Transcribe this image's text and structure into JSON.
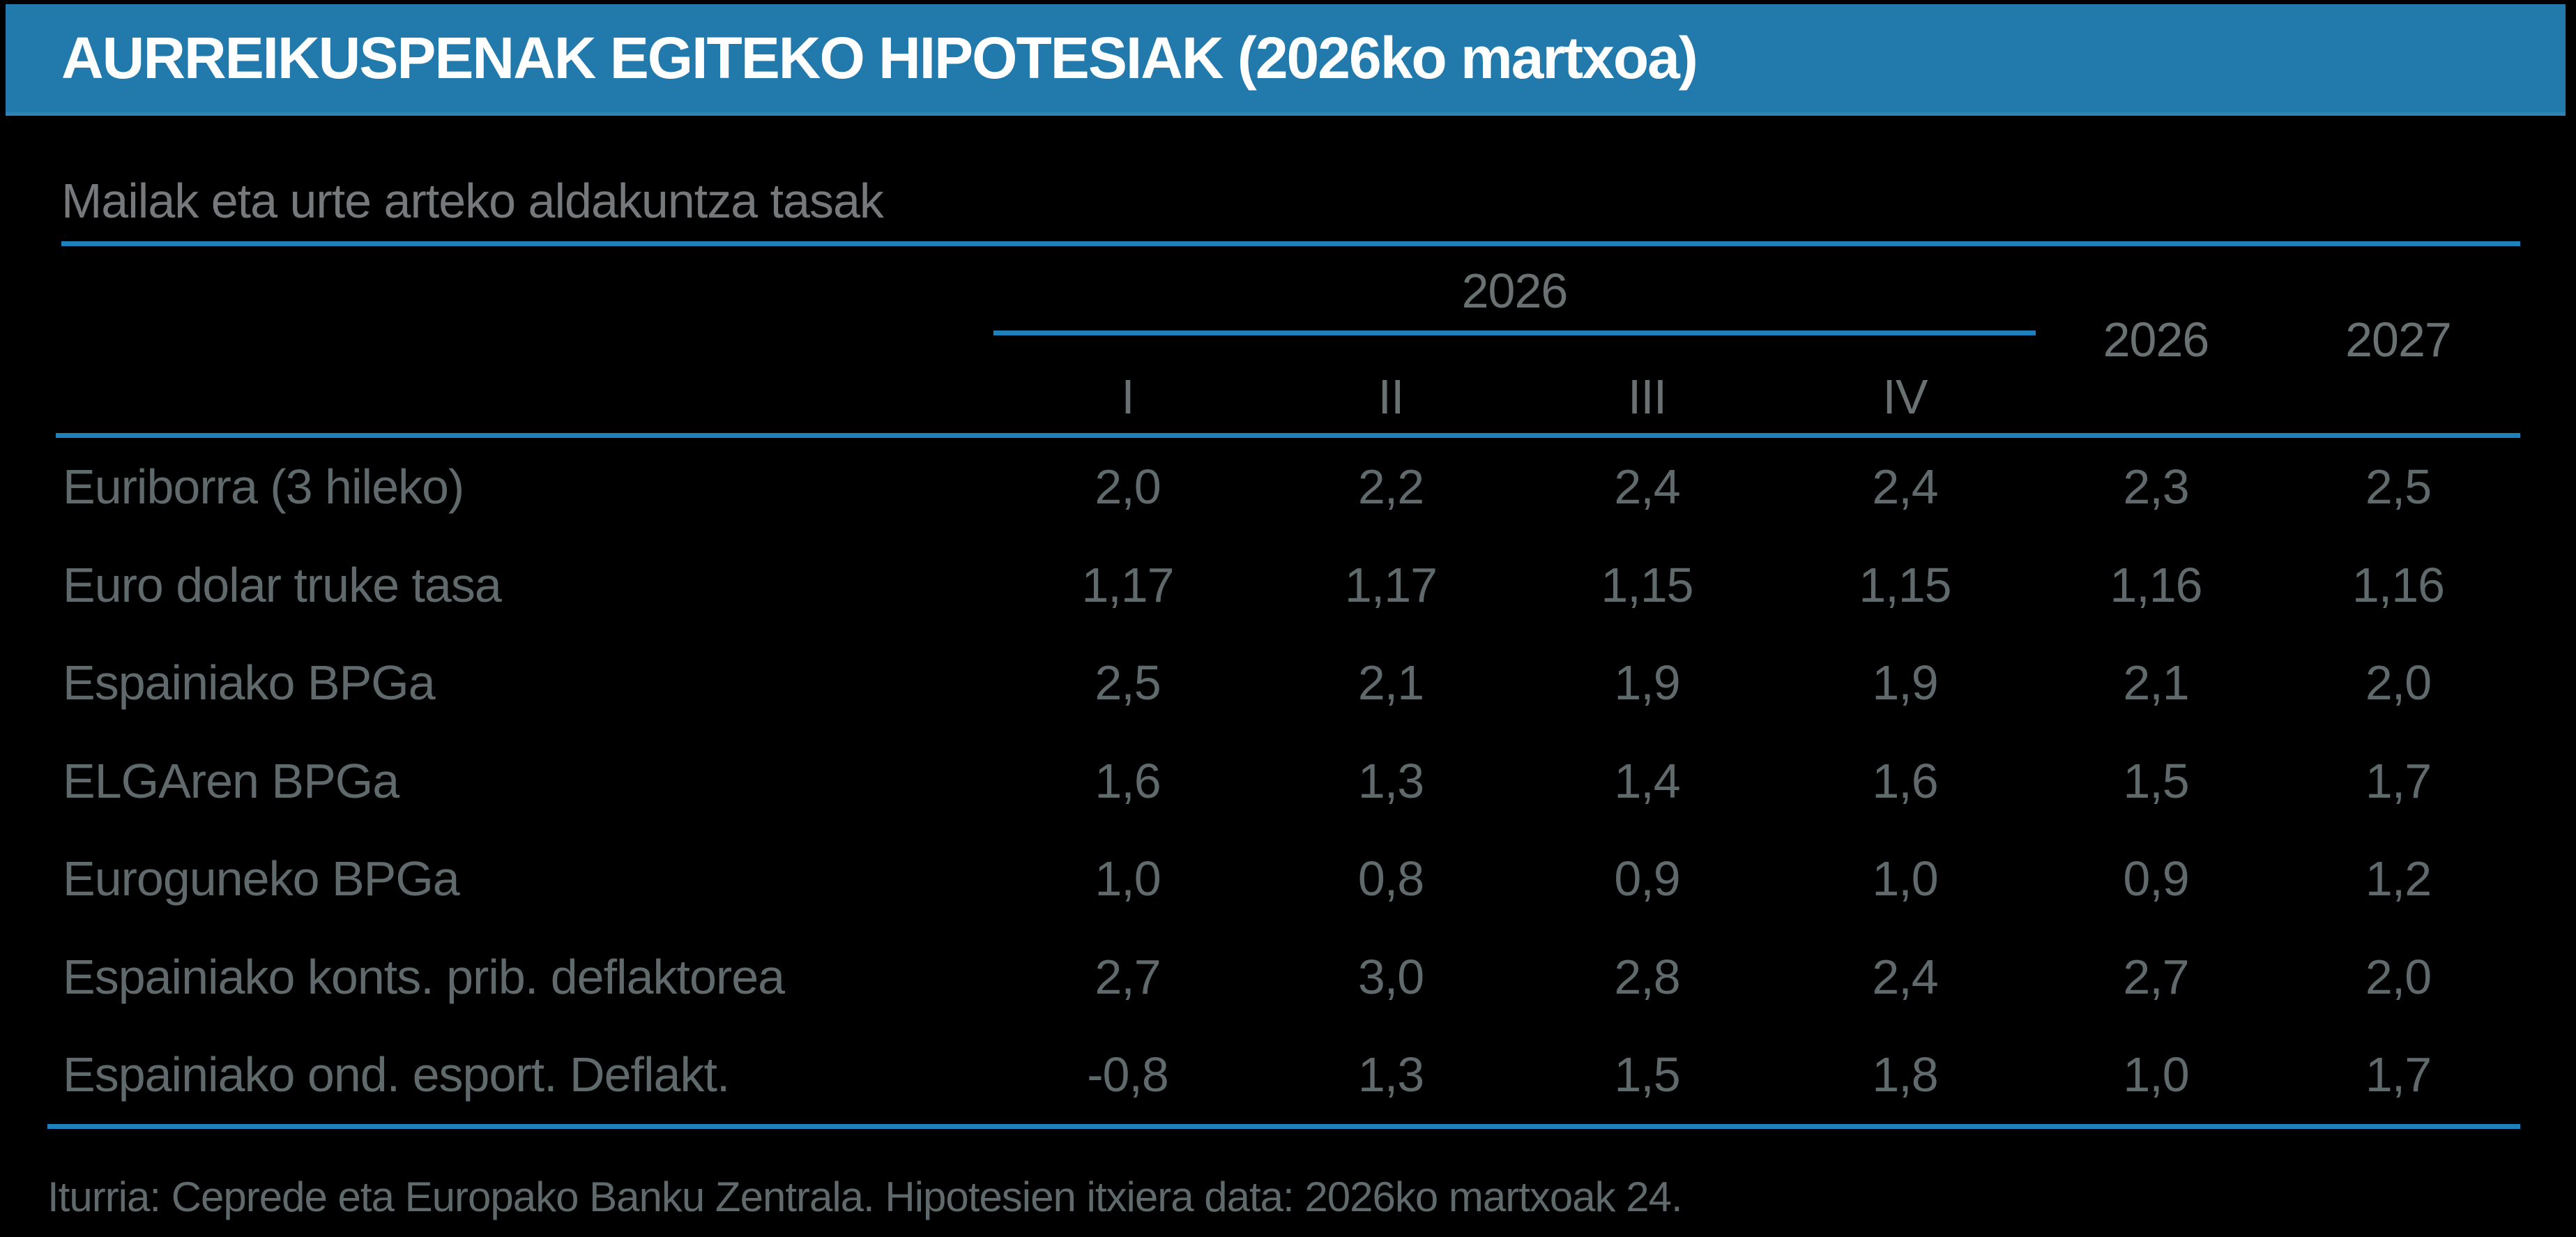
{
  "banner": {
    "title": "AURREIKUSPENAK EGITEKO HIPOTESIAK (2026ko martxoa)"
  },
  "subtitle": "Mailak eta urte arteko aldakuntza tasak",
  "table": {
    "group_header": "2026",
    "quarter_headers": [
      "I",
      "II",
      "III",
      "IV"
    ],
    "annual_headers": [
      "2026",
      "2027"
    ],
    "rows": [
      {
        "label": "Euriborra (3 hileko)",
        "values": [
          "2,0",
          "2,2",
          "2,4",
          "2,4",
          "2,3",
          "2,5"
        ]
      },
      {
        "label": "Euro dolar truke tasa",
        "values": [
          "1,17",
          "1,17",
          "1,15",
          "1,15",
          "1,16",
          "1,16"
        ]
      },
      {
        "label": "Espainiako BPGa",
        "values": [
          "2,5",
          "2,1",
          "1,9",
          "1,9",
          "2,1",
          "2,0"
        ]
      },
      {
        "label": "ELGAren BPGa",
        "values": [
          "1,6",
          "1,3",
          "1,4",
          "1,6",
          "1,5",
          "1,7"
        ]
      },
      {
        "label": "Euroguneko BPGa",
        "values": [
          "1,0",
          "0,8",
          "0,9",
          "1,0",
          "0,9",
          "1,2"
        ]
      },
      {
        "label": "Espainiako konts. prib. deflaktorea",
        "values": [
          "2,7",
          "3,0",
          "2,8",
          "2,4",
          "2,7",
          "2,0"
        ]
      },
      {
        "label": "Espainiako ond. esport. Deflakt.",
        "values": [
          "-0,8",
          "1,3",
          "1,5",
          "1,8",
          "1,0",
          "1,7"
        ]
      }
    ]
  },
  "footer": "Iturria: Ceprede eta Europako Banku Zentrala. Hipotesien itxiera data: 2026ko martxoak 24.",
  "colors": {
    "banner_blue": "#2279ac",
    "accent_blue": "#1d81bb",
    "text_gray": "#606a6c",
    "header_gray": "#6a7173",
    "subtitle_gray": "#75797c",
    "title_white": "#ffffff"
  },
  "chart_data": {
    "type": "table",
    "title": "AURREIKUSPENAK EGITEKO HIPOTESIAK (2026ko martxoa)",
    "subtitle": "Mailak eta urte arteko aldakuntza tasak",
    "columns": [
      "2026 I",
      "2026 II",
      "2026 III",
      "2026 IV",
      "2026",
      "2027"
    ],
    "rows": [
      {
        "label": "Euriborra (3 hileko)",
        "values": [
          2.0,
          2.2,
          2.4,
          2.4,
          2.3,
          2.5
        ]
      },
      {
        "label": "Euro dolar truke tasa",
        "values": [
          1.17,
          1.17,
          1.15,
          1.15,
          1.16,
          1.16
        ]
      },
      {
        "label": "Espainiako BPGa",
        "values": [
          2.5,
          2.1,
          1.9,
          1.9,
          2.1,
          2.0
        ]
      },
      {
        "label": "ELGAren BPGa",
        "values": [
          1.6,
          1.3,
          1.4,
          1.6,
          1.5,
          1.7
        ]
      },
      {
        "label": "Euroguneko BPGa",
        "values": [
          1.0,
          0.8,
          0.9,
          1.0,
          0.9,
          1.2
        ]
      },
      {
        "label": "Espainiako konts. prib. deflaktorea",
        "values": [
          2.7,
          3.0,
          2.8,
          2.4,
          2.7,
          2.0
        ]
      },
      {
        "label": "Espainiako ond. esport. Deflakt.",
        "values": [
          -0.8,
          1.3,
          1.5,
          1.8,
          1.0,
          1.7
        ]
      }
    ],
    "source_note": "Iturria: Ceprede eta Europako Banku Zentrala. Hipotesien itxiera data: 2026ko martxoak 24."
  }
}
